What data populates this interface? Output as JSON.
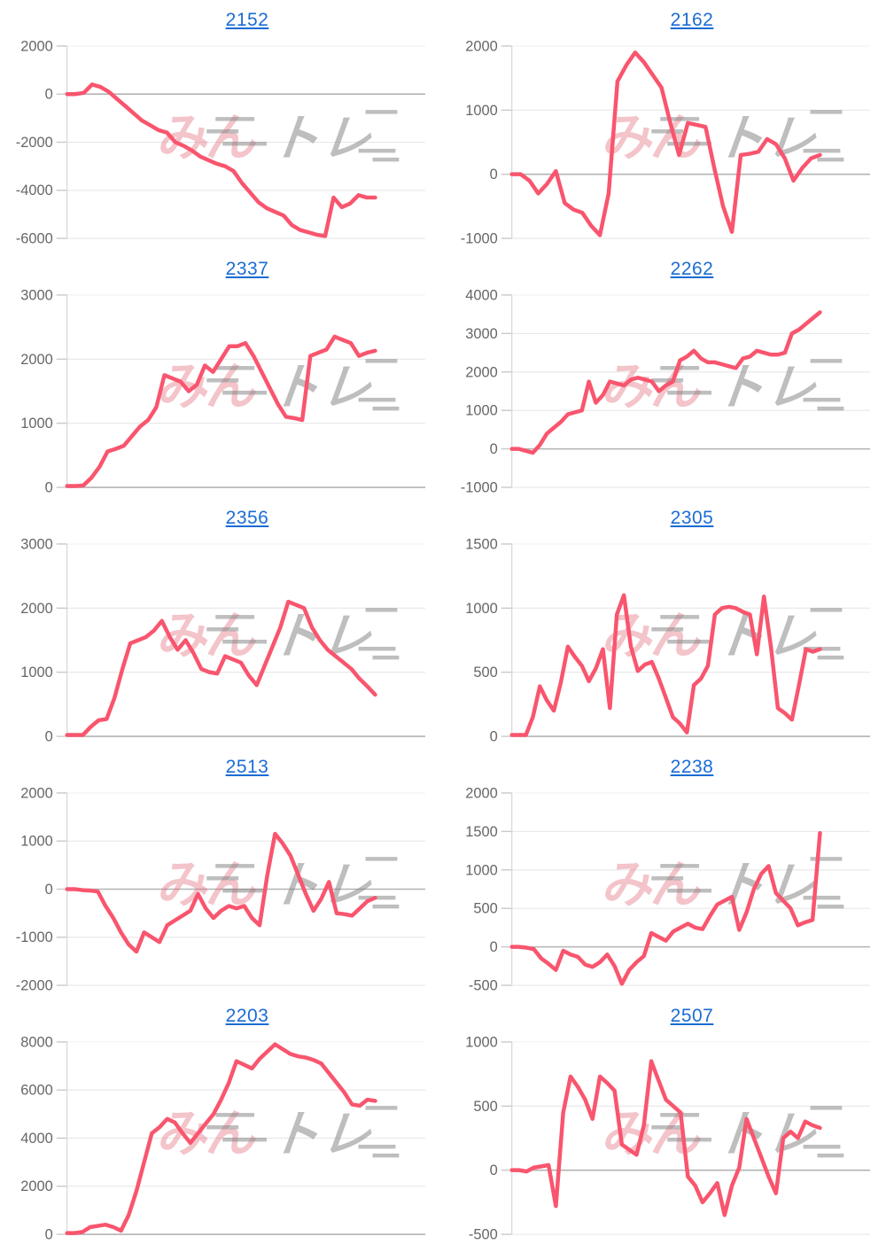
{
  "page": {
    "background": "#ffffff",
    "layout": "2-column grid of 10 sparkline charts, each titled with a stock code link"
  },
  "watermark": {
    "pink_text": "みん",
    "gray_text": "トレ"
  },
  "colors": {
    "line": "#f9556e",
    "title_link": "#1b6cd4",
    "tick_label": "#666666",
    "gridline": "#e7e7e7",
    "top_gridline": "#f2f2f2",
    "zero_line": "#b3b3b3",
    "tick_dash": "#c9c9c9",
    "axis_line": "#d6d6d6",
    "watermark_pink": "rgba(226,108,123,0.40)",
    "watermark_gray": "rgba(130,130,130,0.52)"
  },
  "chart_data": [
    {
      "type": "line",
      "title": "2152",
      "xlabel": "",
      "ylabel": "",
      "yticks": [
        2000,
        0,
        -2000,
        -4000,
        -6000
      ],
      "ylim": [
        -6000,
        2000
      ],
      "grid": true,
      "legend": false,
      "values": [
        0,
        0,
        50,
        400,
        300,
        100,
        -200,
        -500,
        -800,
        -1100,
        -1300,
        -1500,
        -1600,
        -2000,
        -2150,
        -2350,
        -2600,
        -2750,
        -2900,
        -3000,
        -3200,
        -3700,
        -4100,
        -4500,
        -4750,
        -4900,
        -5050,
        -5450,
        -5650,
        -5750,
        -5850,
        -5900,
        -4300,
        -4700,
        -4550,
        -4200,
        -4300,
        -4300
      ]
    },
    {
      "type": "line",
      "title": "2162",
      "xlabel": "",
      "ylabel": "",
      "yticks": [
        2000,
        1000,
        0,
        -1000
      ],
      "ylim": [
        -1000,
        2000
      ],
      "grid": true,
      "legend": false,
      "values": [
        0,
        0,
        -100,
        -300,
        -150,
        50,
        -450,
        -550,
        -600,
        -800,
        -950,
        -300,
        1450,
        1700,
        1900,
        1750,
        1550,
        1350,
        800,
        300,
        800,
        770,
        740,
        100,
        -500,
        -900,
        300,
        320,
        350,
        550,
        470,
        250,
        -100,
        100,
        250,
        300
      ]
    },
    {
      "type": "line",
      "title": "2337",
      "xlabel": "",
      "ylabel": "",
      "yticks": [
        3000,
        2000,
        1000,
        0
      ],
      "ylim": [
        0,
        3000
      ],
      "grid": true,
      "legend": false,
      "values": [
        20,
        20,
        30,
        150,
        320,
        560,
        600,
        650,
        800,
        950,
        1050,
        1250,
        1750,
        1700,
        1650,
        1500,
        1600,
        1900,
        1800,
        2000,
        2200,
        2200,
        2250,
        2050,
        1800,
        1550,
        1300,
        1100,
        1080,
        1050,
        2050,
        2100,
        2150,
        2350,
        2300,
        2250,
        2050,
        2100,
        2130
      ]
    },
    {
      "type": "line",
      "title": "2262",
      "xlabel": "",
      "ylabel": "",
      "yticks": [
        4000,
        3000,
        2000,
        1000,
        0,
        -1000
      ],
      "ylim": [
        -1000,
        4000
      ],
      "grid": true,
      "legend": false,
      "values": [
        0,
        0,
        -50,
        -100,
        100,
        400,
        550,
        700,
        900,
        950,
        1000,
        1750,
        1200,
        1400,
        1750,
        1700,
        1650,
        1800,
        1850,
        1800,
        1750,
        1500,
        1650,
        1750,
        2300,
        2400,
        2550,
        2350,
        2250,
        2250,
        2200,
        2150,
        2100,
        2350,
        2400,
        2550,
        2500,
        2450,
        2450,
        2500,
        3000,
        3100,
        3250,
        3400,
        3550
      ]
    },
    {
      "type": "line",
      "title": "2356",
      "xlabel": "",
      "ylabel": "",
      "yticks": [
        3000,
        2000,
        1000,
        0
      ],
      "ylim": [
        0,
        3000
      ],
      "grid": true,
      "legend": false,
      "values": [
        20,
        20,
        20,
        150,
        250,
        270,
        600,
        1050,
        1450,
        1500,
        1550,
        1650,
        1800,
        1550,
        1350,
        1500,
        1300,
        1050,
        1000,
        980,
        1250,
        1200,
        1150,
        950,
        800,
        1100,
        1400,
        1700,
        2100,
        2050,
        2000,
        1700,
        1500,
        1350,
        1250,
        1150,
        1050,
        900,
        780,
        650
      ]
    },
    {
      "type": "line",
      "title": "2305",
      "xlabel": "",
      "ylabel": "",
      "yticks": [
        1500,
        1000,
        500,
        0
      ],
      "ylim": [
        0,
        1500
      ],
      "grid": true,
      "legend": false,
      "values": [
        10,
        10,
        10,
        150,
        390,
        280,
        200,
        420,
        700,
        620,
        550,
        430,
        530,
        680,
        220,
        950,
        1100,
        700,
        510,
        560,
        580,
        450,
        300,
        150,
        100,
        30,
        400,
        450,
        550,
        950,
        1000,
        1010,
        1000,
        970,
        950,
        640,
        1090,
        700,
        220,
        180,
        130,
        400,
        680,
        660,
        680
      ]
    },
    {
      "type": "line",
      "title": "2513",
      "xlabel": "",
      "ylabel": "",
      "yticks": [
        2000,
        1000,
        0,
        -1000,
        -2000
      ],
      "ylim": [
        -2000,
        2000
      ],
      "grid": true,
      "legend": false,
      "values": [
        0,
        0,
        -20,
        -30,
        -50,
        -350,
        -600,
        -900,
        -1150,
        -1300,
        -900,
        -1000,
        -1100,
        -750,
        -650,
        -550,
        -450,
        -100,
        -400,
        -600,
        -450,
        -350,
        -400,
        -350,
        -600,
        -750,
        300,
        1150,
        950,
        700,
        300,
        -100,
        -450,
        -200,
        150,
        -500,
        -520,
        -550,
        -400,
        -250,
        -180
      ]
    },
    {
      "type": "line",
      "title": "2238",
      "xlabel": "",
      "ylabel": "",
      "yticks": [
        2000,
        1500,
        1000,
        500,
        0,
        -500
      ],
      "ylim": [
        -500,
        2000
      ],
      "grid": true,
      "legend": false,
      "values": [
        0,
        0,
        -10,
        -30,
        -150,
        -220,
        -300,
        -50,
        -100,
        -130,
        -230,
        -260,
        -200,
        -100,
        -250,
        -480,
        -300,
        -200,
        -120,
        180,
        130,
        80,
        200,
        250,
        300,
        250,
        230,
        400,
        550,
        600,
        650,
        220,
        450,
        750,
        950,
        1050,
        700,
        600,
        500,
        280,
        320,
        350,
        1480
      ]
    },
    {
      "type": "line",
      "title": "2203",
      "xlabel": "",
      "ylabel": "",
      "yticks": [
        8000,
        6000,
        4000,
        2000,
        0
      ],
      "ylim": [
        0,
        8000
      ],
      "grid": true,
      "legend": false,
      "values": [
        50,
        50,
        100,
        300,
        350,
        400,
        300,
        150,
        800,
        1800,
        3000,
        4200,
        4450,
        4800,
        4650,
        4200,
        3800,
        4200,
        4600,
        5000,
        5600,
        6300,
        7200,
        7050,
        6900,
        7300,
        7600,
        7900,
        7700,
        7500,
        7400,
        7350,
        7250,
        7100,
        6700,
        6300,
        5900,
        5400,
        5350,
        5600,
        5550
      ]
    },
    {
      "type": "line",
      "title": "2507",
      "xlabel": "",
      "ylabel": "",
      "yticks": [
        1000,
        500,
        0,
        -500
      ],
      "ylim": [
        -500,
        1000
      ],
      "grid": true,
      "legend": false,
      "values": [
        0,
        0,
        -10,
        20,
        30,
        40,
        -280,
        450,
        730,
        650,
        550,
        400,
        730,
        680,
        620,
        200,
        160,
        120,
        350,
        850,
        700,
        550,
        500,
        450,
        -50,
        -120,
        -250,
        -180,
        -100,
        -350,
        -120,
        20,
        400,
        250,
        100,
        -50,
        -180,
        250,
        300,
        250,
        380,
        350,
        330
      ]
    }
  ]
}
